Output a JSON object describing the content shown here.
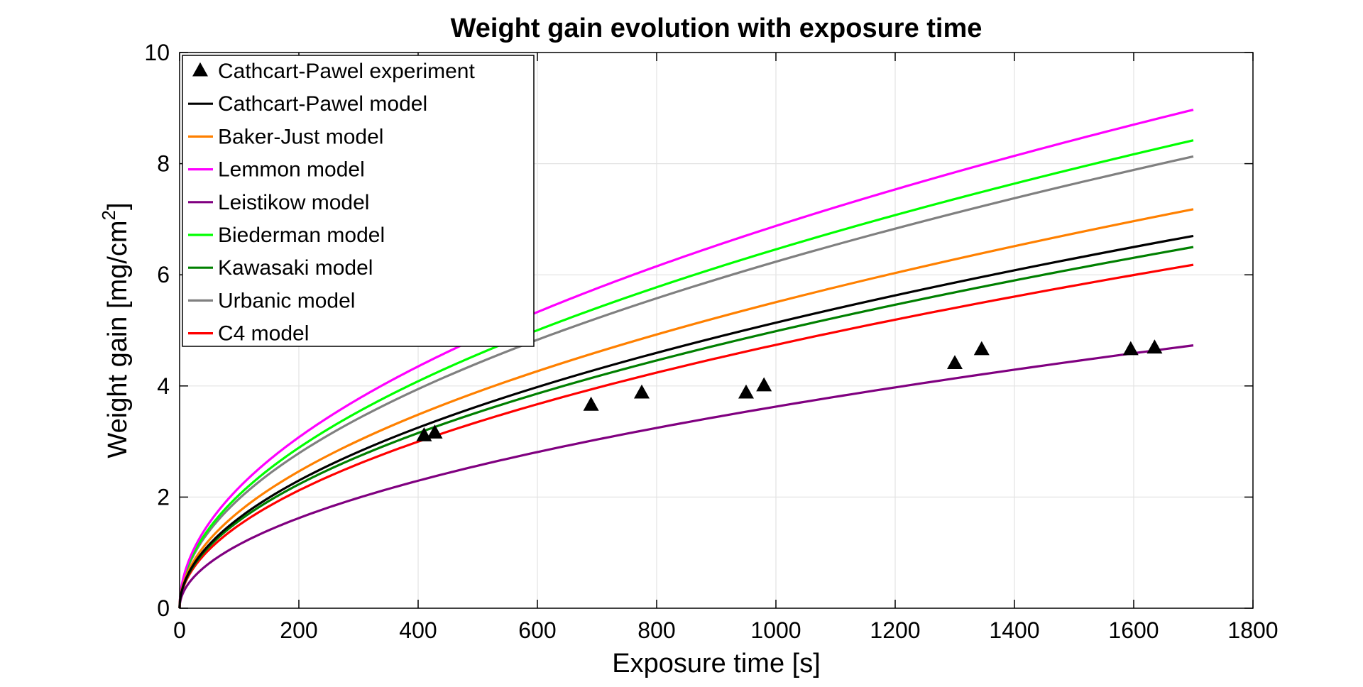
{
  "chart_data": {
    "type": "line",
    "title": "Weight gain evolution with exposure time",
    "xlabel": "Exposure time [s]",
    "ylabel": "Weight gain [mg/cm",
    "ylabel_superscript": "2",
    "ylabel_suffix": "]",
    "xlim": [
      0,
      1800
    ],
    "ylim": [
      0,
      10
    ],
    "xticks": [
      0,
      200,
      400,
      600,
      800,
      1000,
      1200,
      1400,
      1600,
      1800
    ],
    "yticks": [
      0,
      2,
      4,
      6,
      8,
      10
    ],
    "grid": true,
    "legend_position": "top-left",
    "series": [
      {
        "name": "Cathcart-Pawel experiment",
        "kind": "scatter",
        "marker": "triangle",
        "color": "#000000",
        "x": [
          410,
          428,
          690,
          775,
          950,
          980,
          1300,
          1345,
          1595,
          1635
        ],
        "y": [
          3.1,
          3.15,
          3.65,
          3.87,
          3.87,
          4.0,
          4.4,
          4.65,
          4.65,
          4.68
        ]
      },
      {
        "name": "Cathcart-Pawel model",
        "kind": "line",
        "color": "#000000",
        "x_end": 1700,
        "y_end": 6.7
      },
      {
        "name": "Baker-Just model",
        "kind": "line",
        "color": "#ff8000",
        "x_end": 1700,
        "y_end": 7.18
      },
      {
        "name": "Lemmon model",
        "kind": "line",
        "color": "#ff00ff",
        "x_end": 1700,
        "y_end": 8.97
      },
      {
        "name": "Leistikow model",
        "kind": "line",
        "color": "#800080",
        "x_end": 1700,
        "y_end": 4.73
      },
      {
        "name": "Biederman model",
        "kind": "line",
        "color": "#00ff00",
        "x_end": 1700,
        "y_end": 8.42
      },
      {
        "name": "Kawasaki model",
        "kind": "line",
        "color": "#008000",
        "x_end": 1700,
        "y_end": 6.5
      },
      {
        "name": "Urbanic model",
        "kind": "line",
        "color": "#808080",
        "x_end": 1700,
        "y_end": 8.13
      },
      {
        "name": "C4 model",
        "kind": "line",
        "color": "#ff0000",
        "x_end": 1700,
        "y_end": 6.18
      }
    ]
  }
}
